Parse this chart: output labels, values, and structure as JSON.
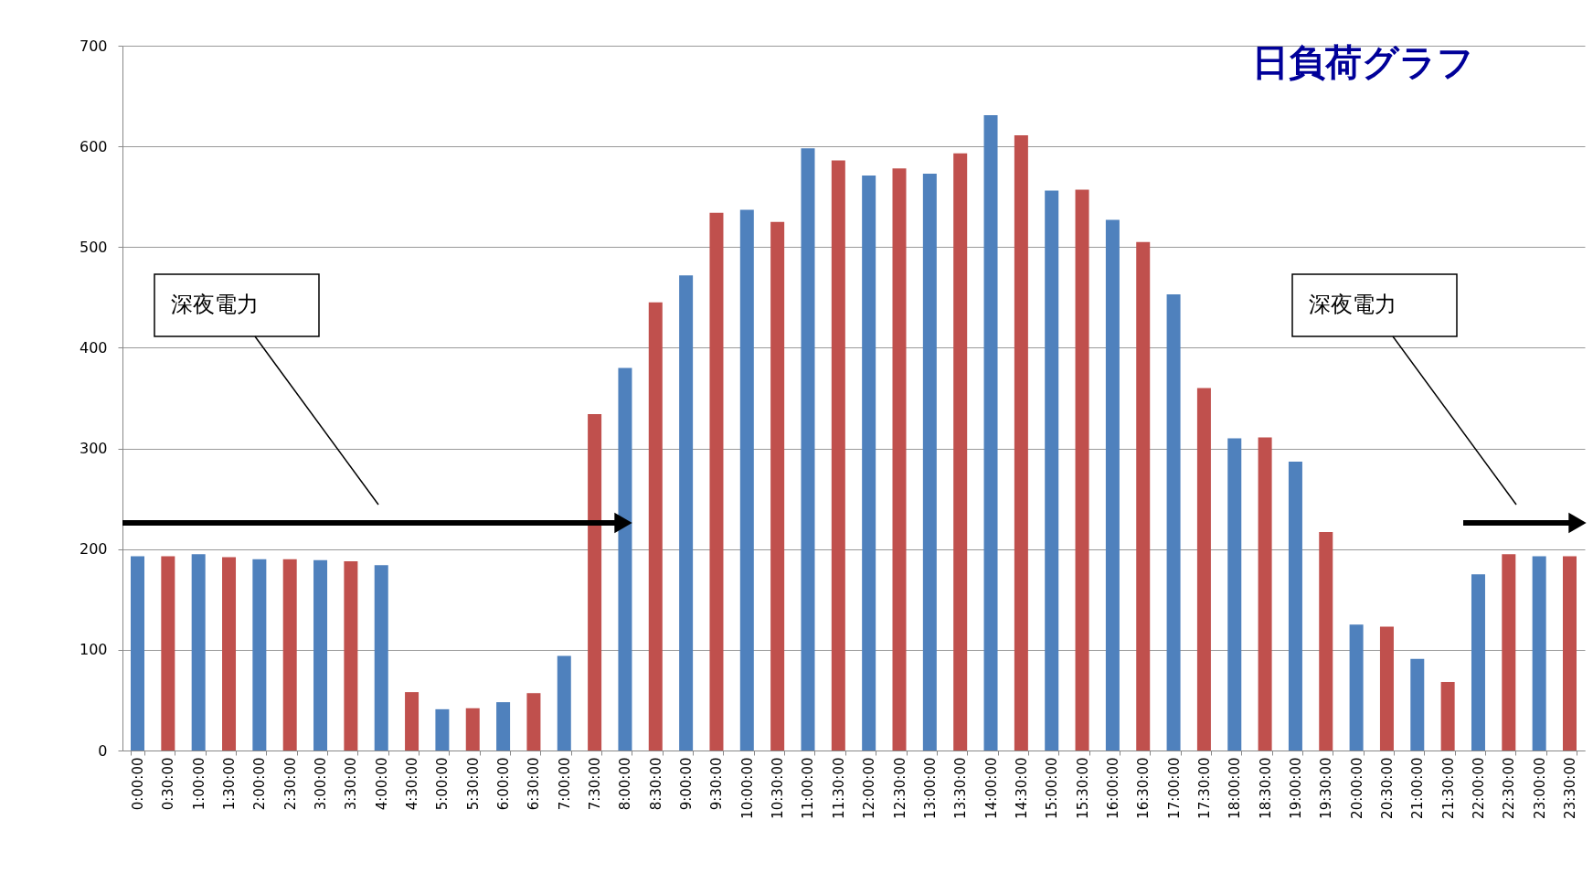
{
  "chart_data": {
    "type": "bar",
    "title": "日負荷グラフ",
    "categories": [
      "0:00:00",
      "0:30:00",
      "1:00:00",
      "1:30:00",
      "2:00:00",
      "2:30:00",
      "3:00:00",
      "3:30:00",
      "4:00:00",
      "4:30:00",
      "5:00:00",
      "5:30:00",
      "6:00:00",
      "6:30:00",
      "7:00:00",
      "7:30:00",
      "8:00:00",
      "8:30:00",
      "9:00:00",
      "9:30:00",
      "10:00:00",
      "10:30:00",
      "11:00:00",
      "11:30:00",
      "12:00:00",
      "12:30:00",
      "13:00:00",
      "13:30:00",
      "14:00:00",
      "14:30:00",
      "15:00:00",
      "15:30:00",
      "16:00:00",
      "16:30:00",
      "17:00:00",
      "17:30:00",
      "18:00:00",
      "18:30:00",
      "19:00:00",
      "19:30:00",
      "20:00:00",
      "20:30:00",
      "21:00:00",
      "21:30:00",
      "22:00:00",
      "22:30:00",
      "23:00:00",
      "23:30:00"
    ],
    "values": [
      193,
      193,
      195,
      192,
      190,
      190,
      189,
      188,
      184,
      58,
      41,
      42,
      48,
      57,
      94,
      334,
      380,
      445,
      472,
      534,
      537,
      525,
      598,
      586,
      571,
      578,
      573,
      593,
      631,
      611,
      556,
      557,
      527,
      505,
      453,
      360,
      310,
      311,
      287,
      217,
      125,
      123,
      91,
      68,
      175,
      195,
      193,
      193
    ],
    "colors": [
      "#4f81bd",
      "#c0504d",
      "#4f81bd",
      "#c0504d",
      "#4f81bd",
      "#c0504d",
      "#4f81bd",
      "#c0504d",
      "#4f81bd",
      "#c0504d",
      "#4f81bd",
      "#c0504d",
      "#4f81bd",
      "#c0504d",
      "#4f81bd",
      "#c0504d",
      "#4f81bd",
      "#c0504d",
      "#4f81bd",
      "#c0504d",
      "#4f81bd",
      "#c0504d",
      "#4f81bd",
      "#c0504d",
      "#4f81bd",
      "#c0504d",
      "#4f81bd",
      "#c0504d",
      "#4f81bd",
      "#c0504d",
      "#4f81bd",
      "#c0504d",
      "#4f81bd",
      "#c0504d",
      "#4f81bd",
      "#c0504d",
      "#4f81bd",
      "#c0504d",
      "#4f81bd",
      "#c0504d",
      "#4f81bd",
      "#c0504d",
      "#4f81bd",
      "#c0504d",
      "#4f81bd",
      "#c0504d",
      "#4f81bd",
      "#c0504d"
    ],
    "ylim": [
      0,
      700
    ],
    "yticks": [
      0,
      100,
      200,
      300,
      400,
      500,
      600,
      700
    ],
    "grid": "y",
    "annotations": [
      "深夜電力",
      "深夜電力"
    ]
  }
}
